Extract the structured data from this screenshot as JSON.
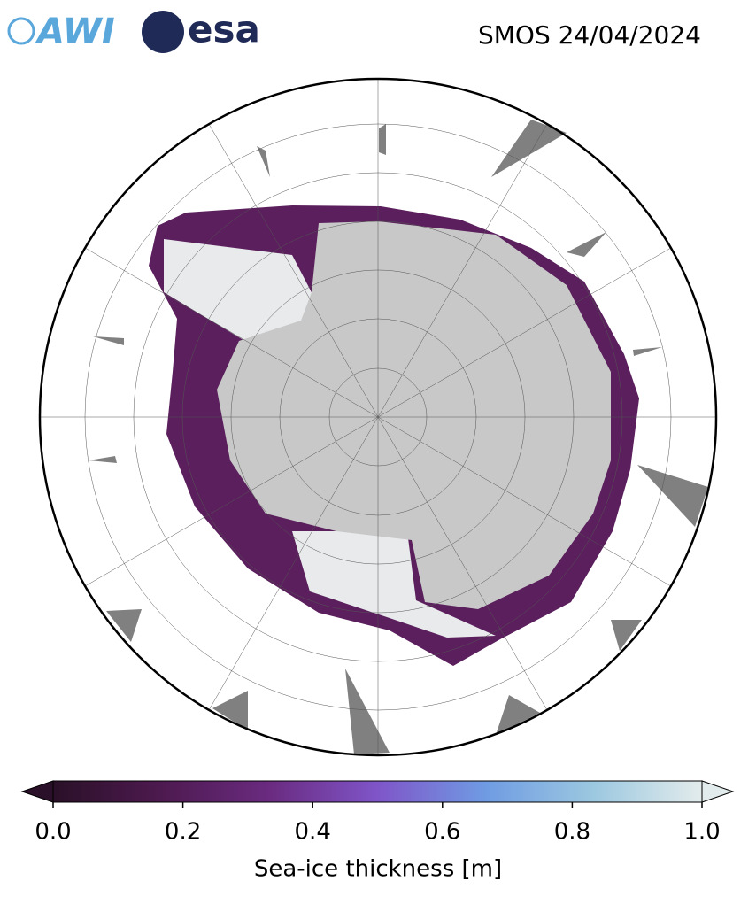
{
  "header": {
    "logos": [
      "AWI",
      "esa"
    ],
    "title": "SMOS 24/04/2024"
  },
  "colorbar": {
    "label": "Sea-ice thickness [m]",
    "range": [
      0,
      1
    ],
    "ticks": [
      {
        "value": 0,
        "label": "0.0"
      },
      {
        "value": 0.2,
        "label": "0.2"
      },
      {
        "value": 0.4,
        "label": "0.4"
      },
      {
        "value": 0.6,
        "label": "0.6"
      },
      {
        "value": 0.8,
        "label": "0.8"
      },
      {
        "value": 1,
        "label": "1.0"
      }
    ],
    "colors": [
      "#2a1028",
      "#4d1a4f",
      "#6a2b80",
      "#7f55c8",
      "#6f9be3",
      "#9cc8e0",
      "#e3ecec"
    ]
  }
}
